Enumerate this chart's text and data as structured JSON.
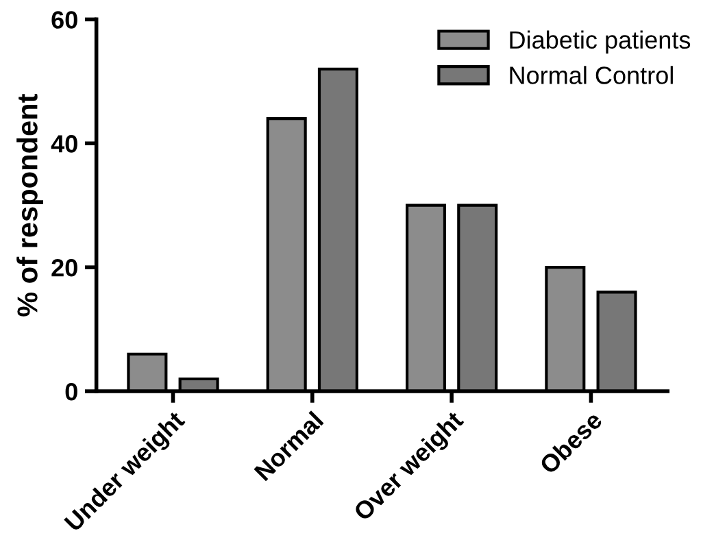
{
  "chart_data": {
    "type": "bar",
    "ylabel": "% of respondent",
    "categories": [
      "Under weight",
      "Normal",
      "Over weight",
      "Obese"
    ],
    "series": [
      {
        "name": "Diabetic patients",
        "color": "#8c8c8c",
        "values": [
          6,
          44,
          30,
          20
        ]
      },
      {
        "name": "Normal Control",
        "color": "#777777",
        "values": [
          2,
          52,
          30,
          16
        ]
      }
    ],
    "ylim": [
      0,
      60
    ],
    "yticks": [
      0,
      20,
      40,
      60
    ],
    "grid": false,
    "legend": "top right"
  }
}
